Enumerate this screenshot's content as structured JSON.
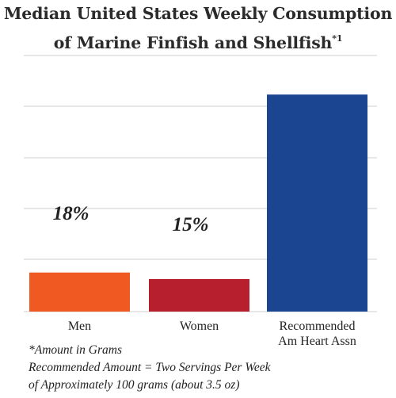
{
  "title": {
    "line1": "Median United States Weekly Consumption",
    "line2": "of Marine Finfish and Shellfish",
    "footnote_mark": "*1"
  },
  "colors": {
    "men": "#f05a22",
    "women": "#b81f2e",
    "recommended": "#1c4591",
    "grid": "#cfcfcf"
  },
  "chart_data": {
    "type": "bar",
    "categories": [
      "Men",
      "Women",
      "Recommended\nAm Heart Assn"
    ],
    "values": [
      18,
      15,
      100
    ],
    "data_labels": [
      "18%",
      "15%",
      ""
    ],
    "colors": [
      "#f05a22",
      "#b81f2e",
      "#1c4591"
    ],
    "ylim": [
      0,
      118
    ],
    "grid": true,
    "y_tick_labels_shown": false
  },
  "notes": {
    "line1": "*Amount in Grams",
    "line2": "Recommended Amount = Two Servings Per Week",
    "line3": "of Approximately 100 grams (about 3.5 oz)"
  }
}
